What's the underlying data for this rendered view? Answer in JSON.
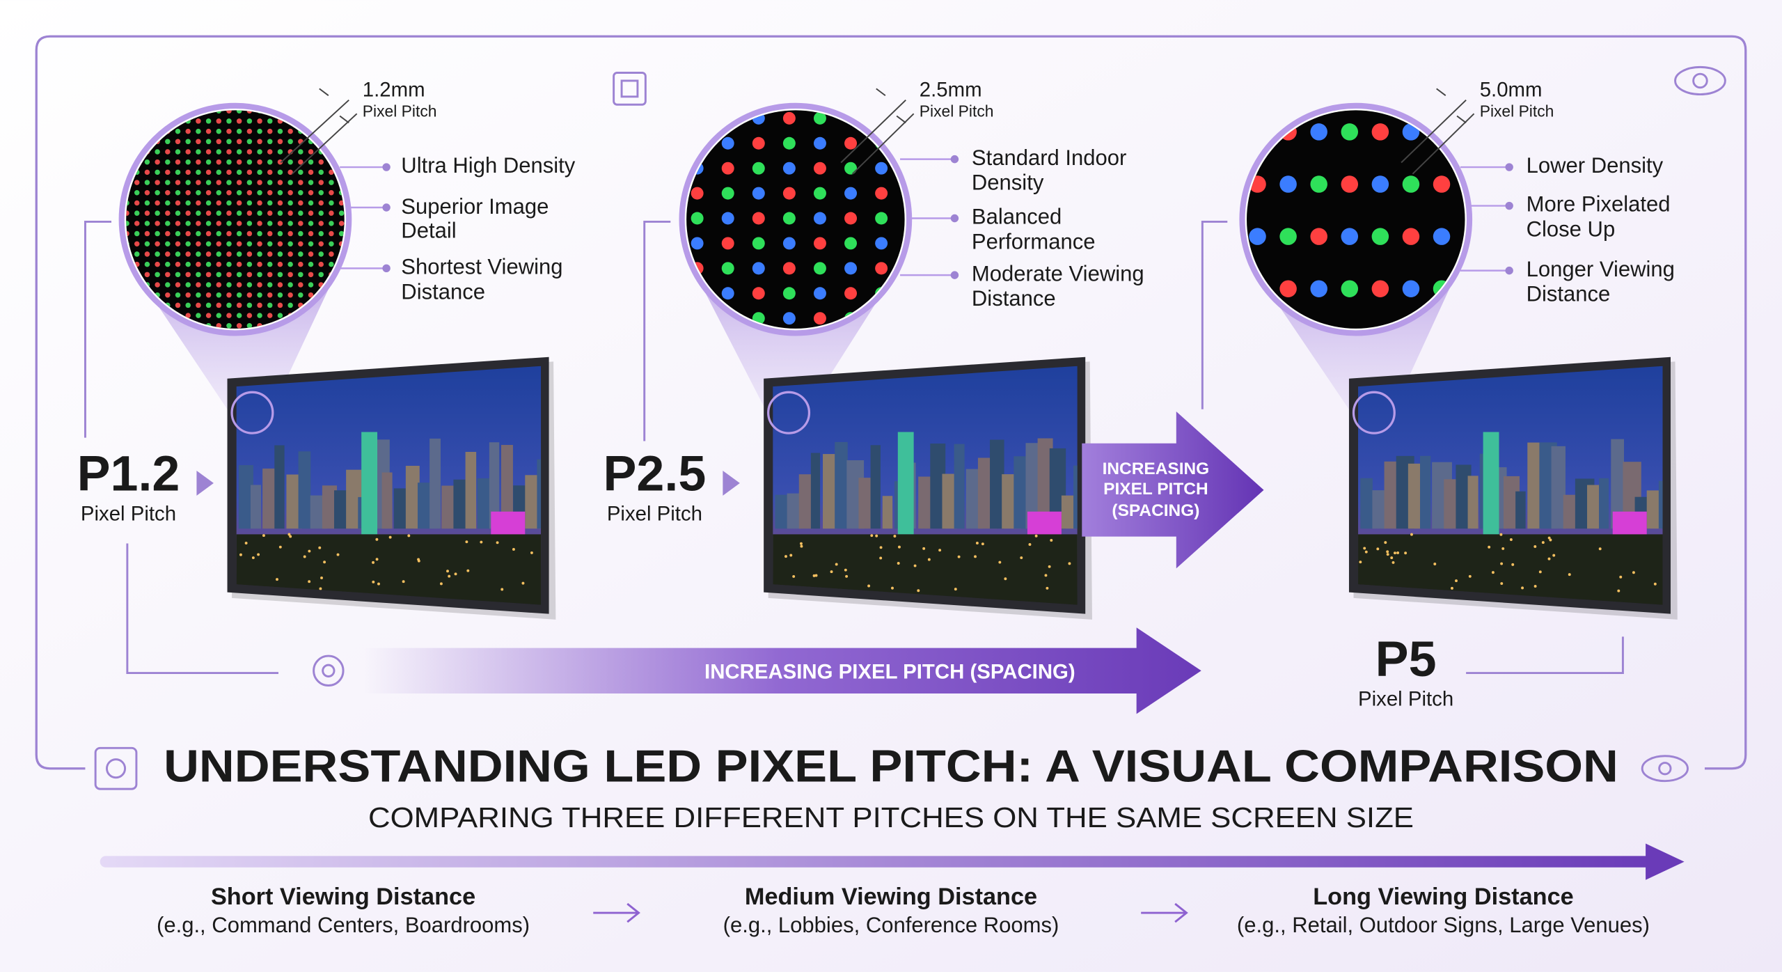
{
  "panels": [
    {
      "pitch": "P1.2",
      "pitch_caption": "Pixel Pitch",
      "measure": "1.2mm",
      "measure_caption": "Pixel Pitch",
      "features": [
        [
          "Ultra High Density"
        ],
        [
          "Superior Image",
          "Detail"
        ],
        [
          "Shortest Viewing",
          "Distance"
        ]
      ]
    },
    {
      "pitch": "P2.5",
      "pitch_caption": "Pixel Pitch",
      "measure": "2.5mm",
      "measure_caption": "Pixel Pitch",
      "features": [
        [
          "Standard Indoor",
          "Density"
        ],
        [
          "Balanced",
          "Performance"
        ],
        [
          "Moderate Viewing",
          "Distance"
        ]
      ]
    },
    {
      "pitch": "P5",
      "pitch_caption": "Pixel Pitch",
      "measure": "5.0mm",
      "measure_caption": "Pixel Pitch",
      "features": [
        [
          "Lower Density"
        ],
        [
          "More Pixelated",
          "Close Up"
        ],
        [
          "Longer Viewing",
          "Distance"
        ]
      ]
    }
  ],
  "middle_arrow": [
    "INCREASING",
    "PIXEL PITCH",
    "(SPACING)"
  ],
  "bottom_arrow": "INCREASING PIXEL PITCH (SPACING)",
  "title": "UNDERSTANDING LED PIXEL PITCH: A VISUAL COMPARISON",
  "subtitle": "COMPARING THREE DIFFERENT PITCHES ON THE SAME SCREEN SIZE",
  "distances": [
    {
      "title": "Short Viewing Distance",
      "example": "(e.g., Command Centers, Boardrooms)"
    },
    {
      "title": "Medium Viewing Distance",
      "example": "(e.g., Lobbies, Conference Rooms)"
    },
    {
      "title": "Long Viewing Distance",
      "example": "(e.g., Retail, Outdoor Signs, Large Venues)"
    }
  ]
}
